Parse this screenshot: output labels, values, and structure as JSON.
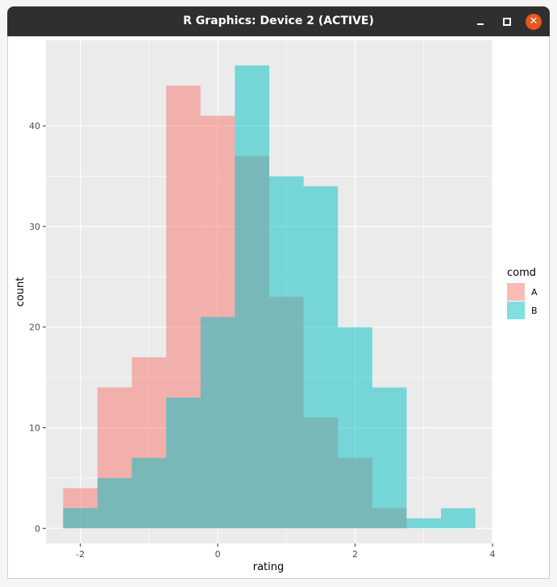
{
  "window": {
    "title": "R Graphics: Device 2 (ACTIVE)",
    "minimize_icon": "minimize-icon",
    "maximize_icon": "maximize-icon",
    "close_icon": "close-icon",
    "close_color": "#e95420"
  },
  "chart_data": {
    "type": "bar",
    "subtype": "overlapping histogram",
    "xlabel": "rating",
    "ylabel": "count",
    "xlim": [
      -2.5,
      4.0
    ],
    "ylim": [
      -1.5,
      48.5
    ],
    "x_ticks": [
      -2,
      0,
      2,
      4
    ],
    "y_ticks": [
      0,
      10,
      20,
      30,
      40
    ],
    "grid": true,
    "bin_width": 0.5,
    "bin_starts": [
      -2.25,
      -1.75,
      -1.25,
      -0.75,
      -0.25,
      0.25,
      0.75,
      1.25,
      1.75,
      2.25,
      2.75,
      3.25
    ],
    "legend": {
      "title": "comd",
      "position": "right"
    },
    "colors": {
      "A": "#f8766d",
      "B": "#00bfc4",
      "panel": "#ebebeb",
      "grid": "#ffffff"
    },
    "series": [
      {
        "name": "A",
        "values": [
          4,
          14,
          17,
          44,
          41,
          37,
          23,
          11,
          7,
          2,
          0,
          0
        ]
      },
      {
        "name": "B",
        "values": [
          2,
          5,
          7,
          13,
          21,
          46,
          35,
          34,
          20,
          14,
          1,
          2
        ]
      }
    ]
  }
}
